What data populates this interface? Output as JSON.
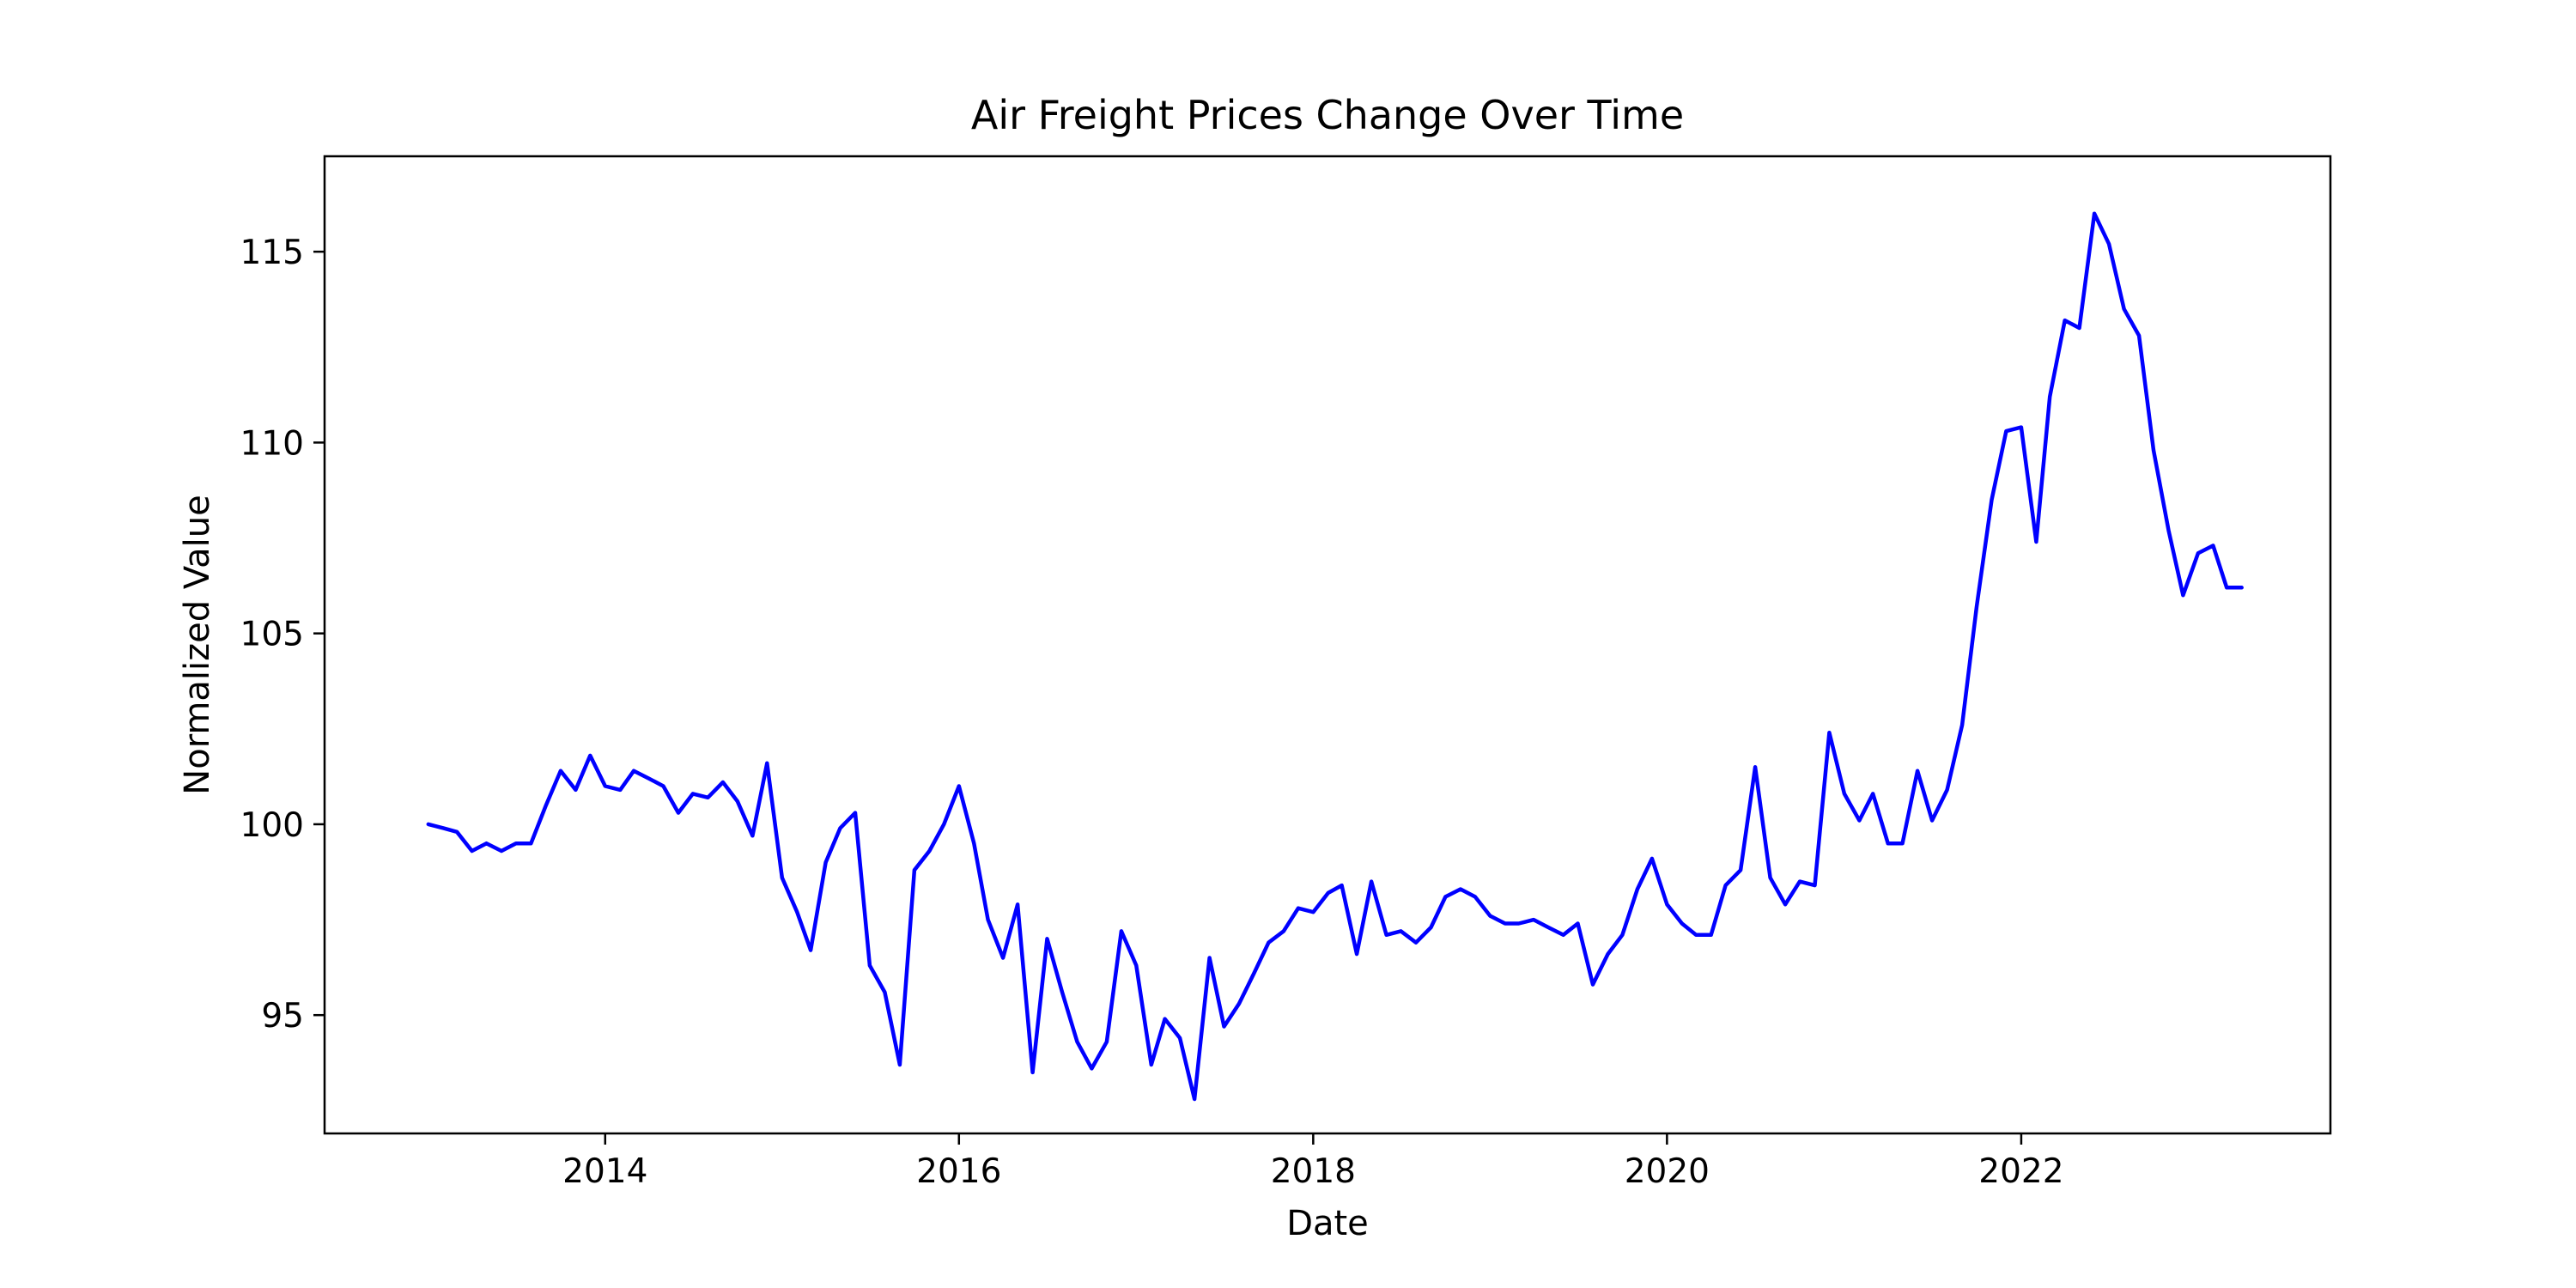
{
  "chart_data": {
    "type": "line",
    "title": "Air Freight Prices Change Over Time",
    "xlabel": "Date",
    "ylabel": "Normalized Value",
    "x_axis_type": "date",
    "xlim": [
      "2012-06-01",
      "2023-10-01"
    ],
    "ylim": [
      91.9,
      117.5
    ],
    "xticks": [
      "2014",
      "2016",
      "2018",
      "2020",
      "2022"
    ],
    "xtick_dates": [
      "2014-01-01",
      "2016-01-01",
      "2018-01-01",
      "2020-01-01",
      "2022-01-01"
    ],
    "yticks": [
      95,
      100,
      105,
      110,
      115
    ],
    "grid": false,
    "legend": "none",
    "line_color": "#0000ff",
    "series": [
      {
        "name": "",
        "x": [
          "2013-01",
          "2013-02",
          "2013-03",
          "2013-04",
          "2013-05",
          "2013-06",
          "2013-07",
          "2013-08",
          "2013-09",
          "2013-10",
          "2013-11",
          "2013-12",
          "2014-01",
          "2014-02",
          "2014-03",
          "2014-04",
          "2014-05",
          "2014-06",
          "2014-07",
          "2014-08",
          "2014-09",
          "2014-10",
          "2014-11",
          "2014-12",
          "2015-01",
          "2015-02",
          "2015-03",
          "2015-04",
          "2015-05",
          "2015-06",
          "2015-07",
          "2015-08",
          "2015-09",
          "2015-10",
          "2015-11",
          "2015-12",
          "2016-01",
          "2016-02",
          "2016-03",
          "2016-04",
          "2016-05",
          "2016-06",
          "2016-07",
          "2016-08",
          "2016-09",
          "2016-10",
          "2016-11",
          "2016-12",
          "2017-01",
          "2017-02",
          "2017-03",
          "2017-04",
          "2017-05",
          "2017-06",
          "2017-07",
          "2017-08",
          "2017-09",
          "2017-10",
          "2017-11",
          "2017-12",
          "2018-01",
          "2018-02",
          "2018-03",
          "2018-04",
          "2018-05",
          "2018-06",
          "2018-07",
          "2018-08",
          "2018-09",
          "2018-10",
          "2018-11",
          "2018-12",
          "2019-01",
          "2019-02",
          "2019-03",
          "2019-04",
          "2019-05",
          "2019-06",
          "2019-07",
          "2019-08",
          "2019-09",
          "2019-10",
          "2019-11",
          "2019-12",
          "2020-01",
          "2020-02",
          "2020-03",
          "2020-04",
          "2020-05",
          "2020-06",
          "2020-07",
          "2020-08",
          "2020-09",
          "2020-10",
          "2020-11",
          "2020-12",
          "2021-01",
          "2021-02",
          "2021-03",
          "2021-04",
          "2021-05",
          "2021-06",
          "2021-07",
          "2021-08",
          "2021-09",
          "2021-10",
          "2021-11",
          "2021-12",
          "2022-01",
          "2022-02",
          "2022-03",
          "2022-04",
          "2022-05",
          "2022-06",
          "2022-07",
          "2022-08",
          "2022-09",
          "2022-10",
          "2022-11",
          "2022-12",
          "2023-01",
          "2023-02",
          "2023-03",
          "2023-04"
        ],
        "y": [
          100.0,
          99.9,
          99.8,
          99.3,
          99.5,
          99.3,
          99.5,
          99.5,
          100.5,
          101.4,
          100.9,
          101.8,
          101.0,
          100.9,
          101.4,
          101.2,
          101.0,
          100.3,
          100.8,
          100.7,
          101.1,
          100.6,
          99.7,
          101.6,
          98.6,
          97.7,
          96.7,
          99.0,
          99.9,
          100.3,
          96.3,
          95.6,
          93.7,
          98.8,
          99.3,
          100.0,
          101.0,
          99.5,
          97.5,
          96.5,
          97.9,
          93.5,
          97.0,
          95.6,
          94.3,
          93.6,
          94.3,
          97.2,
          96.3,
          93.7,
          94.9,
          94.4,
          92.8,
          96.5,
          94.7,
          95.3,
          96.1,
          96.9,
          97.2,
          97.8,
          97.7,
          98.2,
          98.4,
          96.6,
          98.5,
          97.1,
          97.2,
          96.9,
          97.3,
          98.1,
          98.3,
          98.1,
          97.6,
          97.4,
          97.4,
          97.5,
          97.3,
          97.1,
          97.4,
          95.8,
          96.6,
          97.1,
          98.3,
          99.1,
          97.9,
          97.4,
          97.1,
          97.1,
          98.4,
          98.8,
          101.5,
          98.6,
          97.9,
          98.5,
          98.4,
          102.4,
          100.8,
          100.1,
          100.8,
          99.5,
          99.5,
          101.4,
          100.1,
          100.9,
          102.6,
          105.7,
          108.5,
          110.3,
          110.4,
          107.4,
          111.2,
          113.2,
          113.0,
          116.0,
          115.2,
          113.5,
          112.8,
          109.8,
          107.7,
          106.0,
          107.1,
          107.3,
          106.2,
          106.2
        ]
      }
    ]
  }
}
